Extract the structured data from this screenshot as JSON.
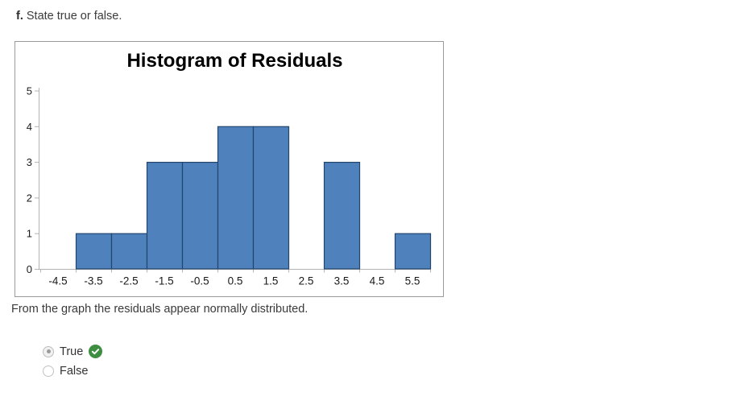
{
  "question": {
    "prefix": "f.",
    "text": " State true or false."
  },
  "chart_data": {
    "type": "bar",
    "title": "Histogram of Residuals",
    "categories": [
      "-4.5",
      "-3.5",
      "-2.5",
      "-1.5",
      "-0.5",
      "0.5",
      "1.5",
      "2.5",
      "3.5",
      "4.5",
      "5.5"
    ],
    "values": [
      0,
      1,
      1,
      3,
      3,
      4,
      4,
      0,
      3,
      0,
      1
    ],
    "xlabel": "",
    "ylabel": "",
    "ylim": [
      0,
      5
    ],
    "yticks": [
      0,
      1,
      2,
      3,
      4,
      5
    ],
    "grid": false,
    "legend": "none",
    "gap_width": 0,
    "bar_fill": "#4f81bd",
    "bar_border": "#24466d",
    "axis_color": "#b3b3b3",
    "tick_label_color": "#1a1a1a"
  },
  "statement": "From the graph the residuals appear normally distributed.",
  "options": [
    {
      "label": "True",
      "selected": true,
      "correct": true
    },
    {
      "label": "False",
      "selected": false,
      "correct": false
    }
  ],
  "colors": {
    "correct_badge": "#3e8e41"
  }
}
